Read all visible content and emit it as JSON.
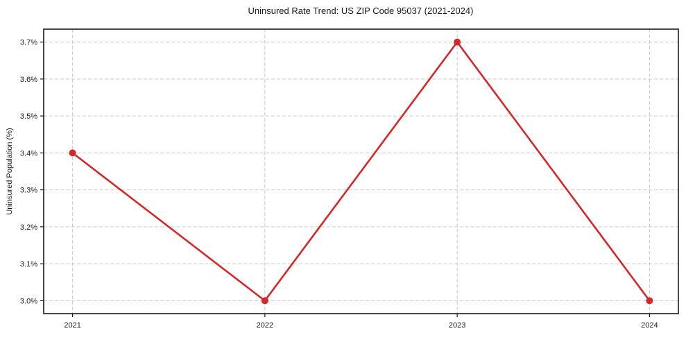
{
  "figure": {
    "title": "Uninsured Rate Trend: US ZIP Code 95037 (2021-2024)",
    "ylabel": "Uninsured Population (%)"
  },
  "chart_data": {
    "type": "line",
    "title": "Uninsured Rate Trend: US ZIP Code 95037 (2021-2024)",
    "xlabel": "",
    "ylabel": "Uninsured Population (%)",
    "x": [
      2021,
      2022,
      2023,
      2024
    ],
    "xtick_labels": [
      "2021",
      "2022",
      "2023",
      "2024"
    ],
    "values": [
      3.4,
      3.0,
      3.7,
      3.0
    ],
    "ytick_values": [
      3.0,
      3.1,
      3.2,
      3.3,
      3.4,
      3.5,
      3.6,
      3.7
    ],
    "ytick_labels": [
      "3.0%",
      "3.1%",
      "3.2%",
      "3.3%",
      "3.4%",
      "3.5%",
      "3.6%",
      "3.7%"
    ],
    "xlim": [
      2020.85,
      2024.15
    ],
    "ylim": [
      2.965,
      3.735
    ],
    "grid": true,
    "grid_style": "dashed",
    "legend_position": "none",
    "marker": "circle",
    "colors": {
      "line": "#d62728",
      "grid": "#c9c9c9",
      "spine": "#1a1a1a",
      "text": "#1a1a1a",
      "background": "#ffffff"
    }
  }
}
